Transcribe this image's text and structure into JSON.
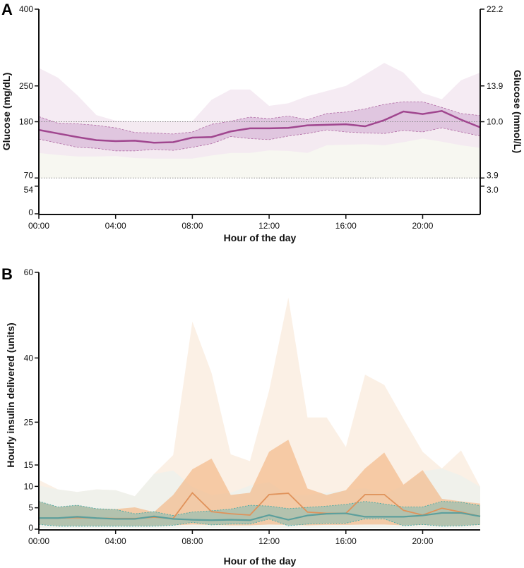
{
  "chart_data": [
    {
      "panel_label": "A",
      "type": "area",
      "xlabel": "Hour of the day",
      "ylabel": "Glucose (mg/dL)",
      "ylabel_right": "Glucose (mmol/L)",
      "x_ticks": [
        "00:00",
        "04:00",
        "08:00",
        "12:00",
        "16:00",
        "20:00"
      ],
      "y_ticks": [
        0,
        54,
        70,
        180,
        250,
        400
      ],
      "y_ticks_right": [
        {
          "value": 54,
          "label": "3.0"
        },
        {
          "value": 70,
          "label": "3.9"
        },
        {
          "value": 180,
          "label": "10.0"
        },
        {
          "value": 250,
          "label": "13.9"
        },
        {
          "value": 400,
          "label": "22.2"
        }
      ],
      "ylim": [
        0,
        400
      ],
      "xlim": [
        0,
        23
      ],
      "reference_lines": [
        70,
        180
      ],
      "target_range": [
        70,
        180
      ],
      "hours": [
        0,
        1,
        2,
        3,
        4,
        5,
        6,
        7,
        8,
        9,
        10,
        11,
        12,
        13,
        14,
        15,
        16,
        17,
        18,
        19,
        20,
        21,
        22,
        23
      ],
      "series": [
        {
          "name": "median",
          "values": [
            164,
            157,
            150,
            144,
            142,
            143,
            139,
            140,
            149,
            150,
            161,
            167,
            167,
            168,
            173,
            174,
            175,
            171,
            183,
            200,
            195,
            201,
            184,
            169
          ]
        },
        {
          "name": "iqr_upper",
          "values": [
            190,
            177,
            176,
            173,
            168,
            159,
            158,
            156,
            160,
            175,
            181,
            189,
            186,
            191,
            184,
            196,
            199,
            205,
            214,
            219,
            219,
            208,
            196,
            192
          ]
        },
        {
          "name": "iqr_lower",
          "values": [
            146,
            138,
            130,
            128,
            123,
            123,
            126,
            124,
            130,
            137,
            151,
            147,
            145,
            152,
            157,
            164,
            160,
            158,
            157,
            163,
            160,
            168,
            160,
            152
          ]
        },
        {
          "name": "outer_upper",
          "values": [
            285,
            266,
            232,
            193,
            182,
            181,
            181,
            181,
            181,
            223,
            243,
            243,
            211,
            216,
            230,
            240,
            250,
            272,
            295,
            276,
            236,
            224,
            261,
            276
          ]
        },
        {
          "name": "outer_lower",
          "values": [
            119,
            115,
            112,
            112,
            113,
            109,
            108,
            108,
            108,
            114,
            119,
            119,
            124,
            123,
            119,
            134,
            135,
            136,
            134,
            140,
            147,
            141,
            134,
            129
          ]
        }
      ],
      "colors": {
        "line": "#a0468f",
        "iqr": "#dcc0dc",
        "outer": "#f3e7f1",
        "target": "#f7f7f1"
      }
    },
    {
      "panel_label": "B",
      "type": "area",
      "xlabel": "Hour of the day",
      "ylabel": "Hourly insulin delivered (units)",
      "x_ticks": [
        "00:00",
        "04:00",
        "08:00",
        "12:00",
        "16:00",
        "20:00"
      ],
      "y_ticks": [
        0,
        5,
        10,
        15,
        25,
        40,
        60
      ],
      "ylim": [
        0,
        60
      ],
      "xlim": [
        0,
        23
      ],
      "hours": [
        0,
        1,
        2,
        3,
        4,
        5,
        6,
        7,
        8,
        9,
        10,
        11,
        12,
        13,
        14,
        15,
        16,
        17,
        18,
        19,
        20,
        21,
        22,
        23
      ],
      "groups": [
        {
          "name": "orange",
          "colors": {
            "line": "#e0925a",
            "iqr": "#f3b07a",
            "outer": "#fbeee2"
          },
          "median": [
            2.6,
            2.6,
            2.7,
            2.6,
            2.5,
            2.5,
            2.8,
            2.5,
            8.5,
            4.1,
            3.6,
            3.3,
            8.1,
            8.4,
            4.0,
            3.7,
            3.7,
            8.1,
            8.1,
            4.4,
            3.3,
            4.9,
            4.0,
            3.0
          ],
          "iqr_upper": [
            6.5,
            5.2,
            5.6,
            4.8,
            4.7,
            5.1,
            4.0,
            8.0,
            14.0,
            16.5,
            8.0,
            8.5,
            18.1,
            20.9,
            9.5,
            8.0,
            9.1,
            14.2,
            17.9,
            10.4,
            13.8,
            7.1,
            6.5,
            6.0
          ],
          "iqr_lower": [
            1.1,
            0.8,
            0.8,
            0.8,
            0.8,
            0.8,
            0.8,
            0.9,
            1.1,
            1.0,
            0.9,
            0.9,
            1.1,
            1.0,
            0.9,
            1.0,
            1.0,
            1.1,
            1.1,
            0.9,
            1.0,
            0.8,
            0.8,
            1.0
          ],
          "outer_upper": [
            11.5,
            9.3,
            8.7,
            9.3,
            9.1,
            7.7,
            12.9,
            17.3,
            48.5,
            36.5,
            17.5,
            15.9,
            32.4,
            54.1,
            26.1,
            26.1,
            19.2,
            36.1,
            33.7,
            25.8,
            18.1,
            14.2,
            18.4,
            9.9
          ],
          "outer_lower": [
            0.3,
            0.3,
            0.3,
            0.3,
            0.3,
            0.3,
            0.3,
            0.3,
            0.3,
            0.3,
            0.3,
            0.3,
            0.3,
            0.3,
            0.3,
            0.3,
            0.3,
            0.3,
            0.3,
            0.3,
            0.3,
            0.3,
            0.3,
            0.3
          ]
        },
        {
          "name": "teal",
          "colors": {
            "line": "#5c9f9c",
            "iqr": "#7fbcb4",
            "outer": "#eef1ec"
          },
          "median": [
            2.6,
            2.6,
            2.9,
            2.6,
            2.4,
            2.4,
            3.0,
            2.4,
            2.2,
            2.1,
            2.2,
            2.1,
            3.3,
            2.2,
            3.2,
            3.6,
            3.7,
            2.9,
            2.9,
            2.9,
            3.2,
            3.8,
            3.8,
            3.0
          ],
          "iqr_upper": [
            6.5,
            5.2,
            5.6,
            4.8,
            4.6,
            3.6,
            4.1,
            3.2,
            4.0,
            4.3,
            4.7,
            5.6,
            5.4,
            4.8,
            5.1,
            5.4,
            5.8,
            6.5,
            5.9,
            5.2,
            5.2,
            6.5,
            6.3,
            5.5
          ],
          "iqr_lower": [
            1.1,
            0.7,
            0.7,
            0.7,
            0.7,
            0.7,
            0.7,
            0.9,
            1.6,
            1.0,
            1.2,
            1.2,
            2.4,
            0.8,
            1.2,
            1.4,
            1.4,
            2.4,
            2.4,
            0.8,
            1.1,
            0.7,
            0.8,
            1.1
          ],
          "outer_upper": [
            10.2,
            9.3,
            8.7,
            9.3,
            9.1,
            7.7,
            12.9,
            13.7,
            9.9,
            8.0,
            8.5,
            10.2,
            11.0,
            8.0,
            8.0,
            8.5,
            9.1,
            9.6,
            8.2,
            10.2,
            13.5,
            14.2,
            12.5,
            9.9
          ],
          "outer_lower": [
            0.3,
            0.3,
            0.3,
            0.3,
            0.3,
            0.3,
            0.3,
            0.3,
            0.3,
            0.3,
            0.3,
            0.3,
            0.3,
            0.3,
            0.3,
            0.3,
            0.3,
            0.3,
            0.3,
            0.3,
            0.3,
            0.3,
            0.3,
            0.3
          ]
        }
      ]
    }
  ]
}
